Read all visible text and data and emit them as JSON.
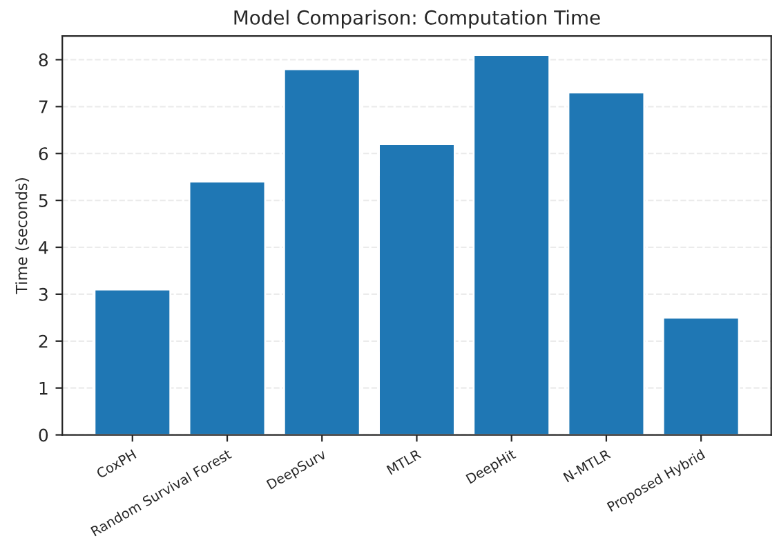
{
  "chart_data": {
    "type": "bar",
    "title": "Model Comparison: Computation Time",
    "ylabel": "Time (seconds)",
    "categories": [
      "CoxPH",
      "Random Survival Forest",
      "DeepSurv",
      "MTLR",
      "DeepHit",
      "N-MTLR",
      "Proposed Hybrid"
    ],
    "values": [
      3.1,
      5.4,
      7.8,
      6.2,
      8.1,
      7.3,
      2.5
    ],
    "color": "#1f77b4",
    "ylim": [
      0,
      8.505
    ],
    "yticks": [
      0,
      1,
      2,
      3,
      4,
      5,
      6,
      7,
      8
    ],
    "grid": "y"
  }
}
